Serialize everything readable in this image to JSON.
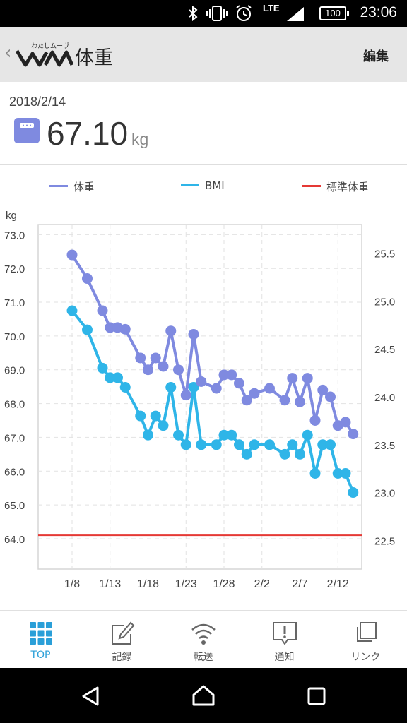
{
  "status": {
    "time": "23:06",
    "network": "LTE",
    "battery": "100"
  },
  "header": {
    "title": "体重",
    "logo_text": "わたしムーヴ",
    "edit_label": "編集"
  },
  "summary": {
    "date": "2018/2/14",
    "value": "67.10",
    "unit": "kg"
  },
  "legend": [
    {
      "label": "体重",
      "color": "#7f8ae0"
    },
    {
      "label": "BMI",
      "color": "#2fb5e8"
    },
    {
      "label": "標準体重",
      "color": "#e53935"
    }
  ],
  "chart_data": {
    "type": "line",
    "ylabel": "kg",
    "x_dates": [
      "1/8",
      "1/10",
      "1/12",
      "1/13",
      "1/14",
      "1/15",
      "1/17",
      "1/18",
      "1/19",
      "1/20",
      "1/21",
      "1/22",
      "1/23",
      "1/24",
      "1/25",
      "1/27",
      "1/28",
      "1/29",
      "1/30",
      "1/31",
      "2/1",
      "2/3",
      "2/5",
      "2/6",
      "2/7",
      "2/8",
      "2/9",
      "2/10",
      "2/11",
      "2/12",
      "2/13",
      "2/14"
    ],
    "xticks": [
      "1/8",
      "1/13",
      "1/18",
      "1/23",
      "1/28",
      "2/2",
      "2/7",
      "2/12"
    ],
    "yticks_left": [
      "73.0",
      "72.0",
      "71.0",
      "70.0",
      "69.0",
      "68.0",
      "67.0",
      "66.0",
      "65.0",
      "64.0"
    ],
    "yticks_right": [
      "25.5",
      "25.0",
      "24.5",
      "24.0",
      "23.5",
      "23.0",
      "22.5"
    ],
    "ylim_left": [
      63.1,
      73.3
    ],
    "ylim_right": [
      22.2,
      25.8
    ],
    "series": [
      {
        "name": "体重",
        "color": "#7f8ae0",
        "axis": "left",
        "values": [
          72.4,
          71.7,
          70.75,
          70.25,
          70.25,
          70.2,
          69.35,
          69.0,
          69.35,
          69.1,
          70.15,
          69.0,
          68.25,
          70.05,
          68.65,
          68.45,
          68.85,
          68.85,
          68.6,
          68.1,
          68.3,
          68.45,
          68.1,
          68.75,
          68.05,
          68.75,
          67.5,
          68.4,
          68.2,
          67.35,
          67.45,
          67.1
        ]
      },
      {
        "name": "BMI",
        "color": "#2fb5e8",
        "axis": "right",
        "values": [
          24.9,
          24.7,
          24.3,
          24.2,
          24.2,
          24.1,
          23.8,
          23.6,
          23.8,
          23.7,
          24.1,
          23.6,
          23.5,
          24.1,
          23.5,
          23.5,
          23.6,
          23.6,
          23.5,
          23.4,
          23.5,
          23.5,
          23.4,
          23.5,
          23.4,
          23.6,
          23.2,
          23.5,
          23.5,
          23.2,
          23.2,
          23.0
        ]
      },
      {
        "name": "標準体重",
        "color": "#e53935",
        "axis": "left",
        "values": [
          64.1
        ]
      }
    ]
  },
  "bottom_nav": [
    {
      "label": "TOP",
      "icon": "grid-icon",
      "active": true
    },
    {
      "label": "記録",
      "icon": "pencil-icon",
      "active": false
    },
    {
      "label": "転送",
      "icon": "wifi-icon",
      "active": false
    },
    {
      "label": "通知",
      "icon": "notification-icon",
      "active": false
    },
    {
      "label": "リンク",
      "icon": "link-icon",
      "active": false
    }
  ],
  "colors": {
    "accent": "#2a9fd8",
    "weight": "#7f8ae0",
    "bmi": "#2fb5e8",
    "standard": "#e53935"
  }
}
